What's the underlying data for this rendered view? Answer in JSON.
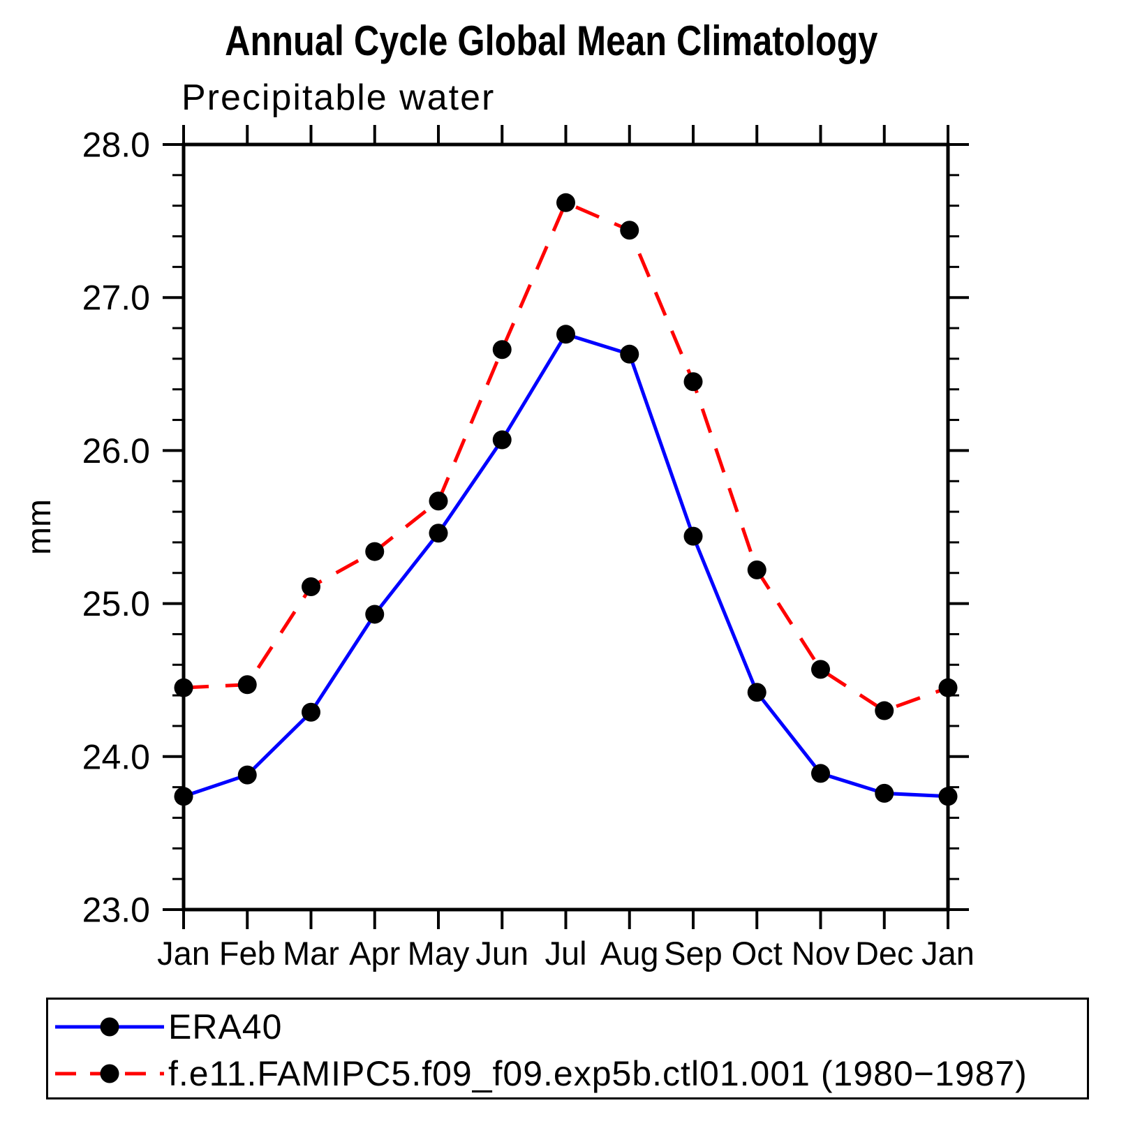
{
  "title": "Annual Cycle Global Mean Climatology",
  "subtitle": "Precipitable water",
  "ylabel": "mm",
  "chart_data": {
    "type": "line",
    "categories": [
      "Jan",
      "Feb",
      "Mar",
      "Apr",
      "May",
      "Jun",
      "Jul",
      "Aug",
      "Sep",
      "Oct",
      "Nov",
      "Dec",
      "Jan"
    ],
    "series": [
      {
        "name": "ERA40",
        "color": "#0000ff",
        "line_style": "solid",
        "marker": "filled-circle",
        "marker_color": "#000000",
        "values": [
          23.74,
          23.88,
          24.29,
          24.93,
          25.46,
          26.07,
          26.76,
          26.63,
          25.44,
          24.42,
          23.89,
          23.76,
          23.74
        ]
      },
      {
        "name": "f.e11.FAMIPC5.f09_f09.exp5b.ctl01.001 (1980−1987)",
        "color": "#ff0000",
        "line_style": "dashed",
        "marker": "filled-circle",
        "marker_color": "#000000",
        "values": [
          24.45,
          24.47,
          25.11,
          25.34,
          25.67,
          26.66,
          27.62,
          27.44,
          26.45,
          25.22,
          24.57,
          24.3,
          24.45
        ]
      }
    ],
    "title": "Annual Cycle Global Mean Climatology",
    "subtitle": "Precipitable water",
    "xlabel": "",
    "ylabel": "mm",
    "ylim": [
      23.0,
      28.0
    ],
    "ytick_labels": [
      "28.0",
      "27.0",
      "26.0",
      "25.0",
      "24.0",
      "23.0"
    ],
    "ytick_minor_step": 0.2,
    "grid": "off",
    "legend_position": "bottom"
  }
}
